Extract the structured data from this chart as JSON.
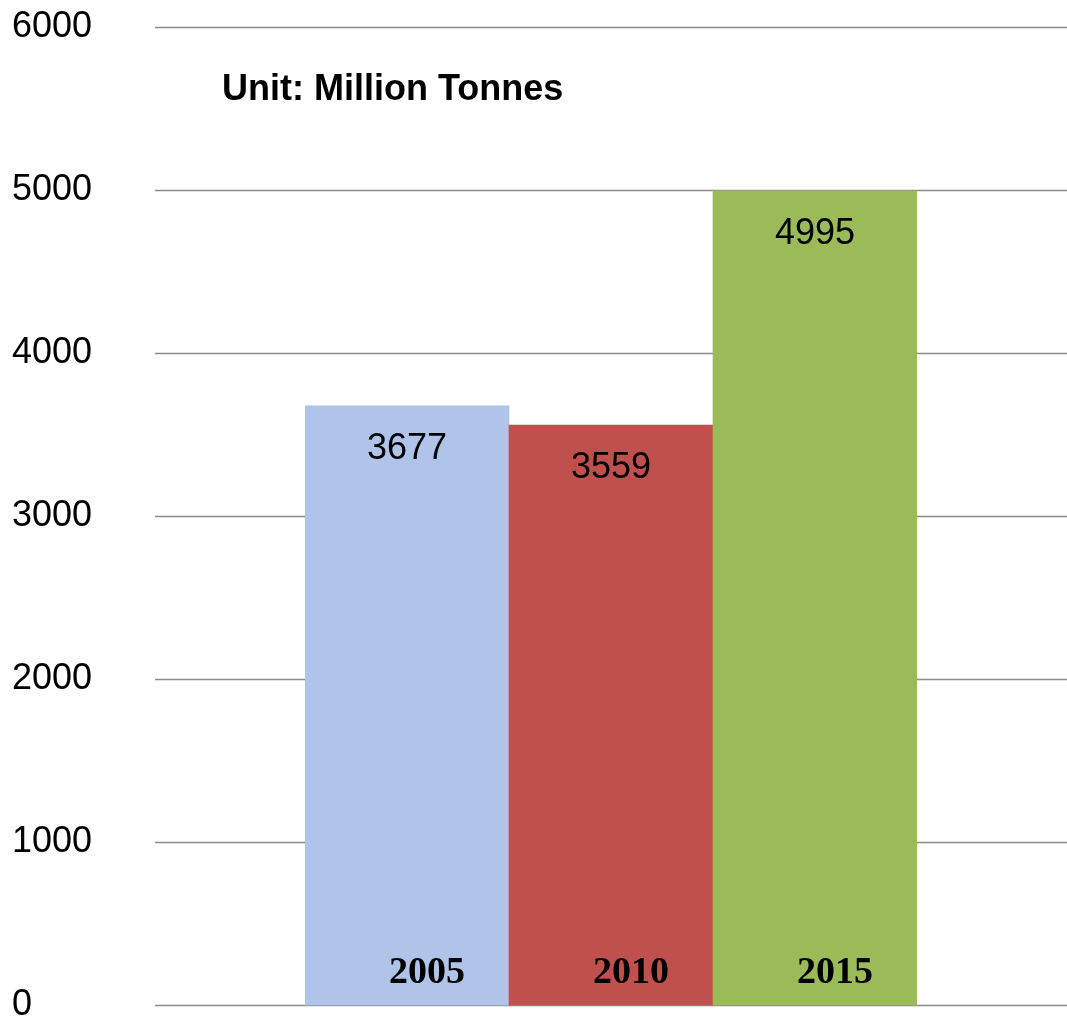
{
  "chart_data": {
    "type": "bar",
    "annotations": [
      "Unit: Million Tonnes"
    ],
    "categories": [
      "2005",
      "2010",
      "2015"
    ],
    "values": [
      3677,
      3559,
      4995
    ],
    "colors": [
      "#b0c4ea",
      "#c0504d",
      "#9bbb59"
    ],
    "ylim": [
      0,
      6000
    ],
    "yticks": [
      0,
      1000,
      2000,
      3000,
      4000,
      5000,
      6000
    ],
    "grid": "y",
    "data_labels": true,
    "legend": false
  }
}
